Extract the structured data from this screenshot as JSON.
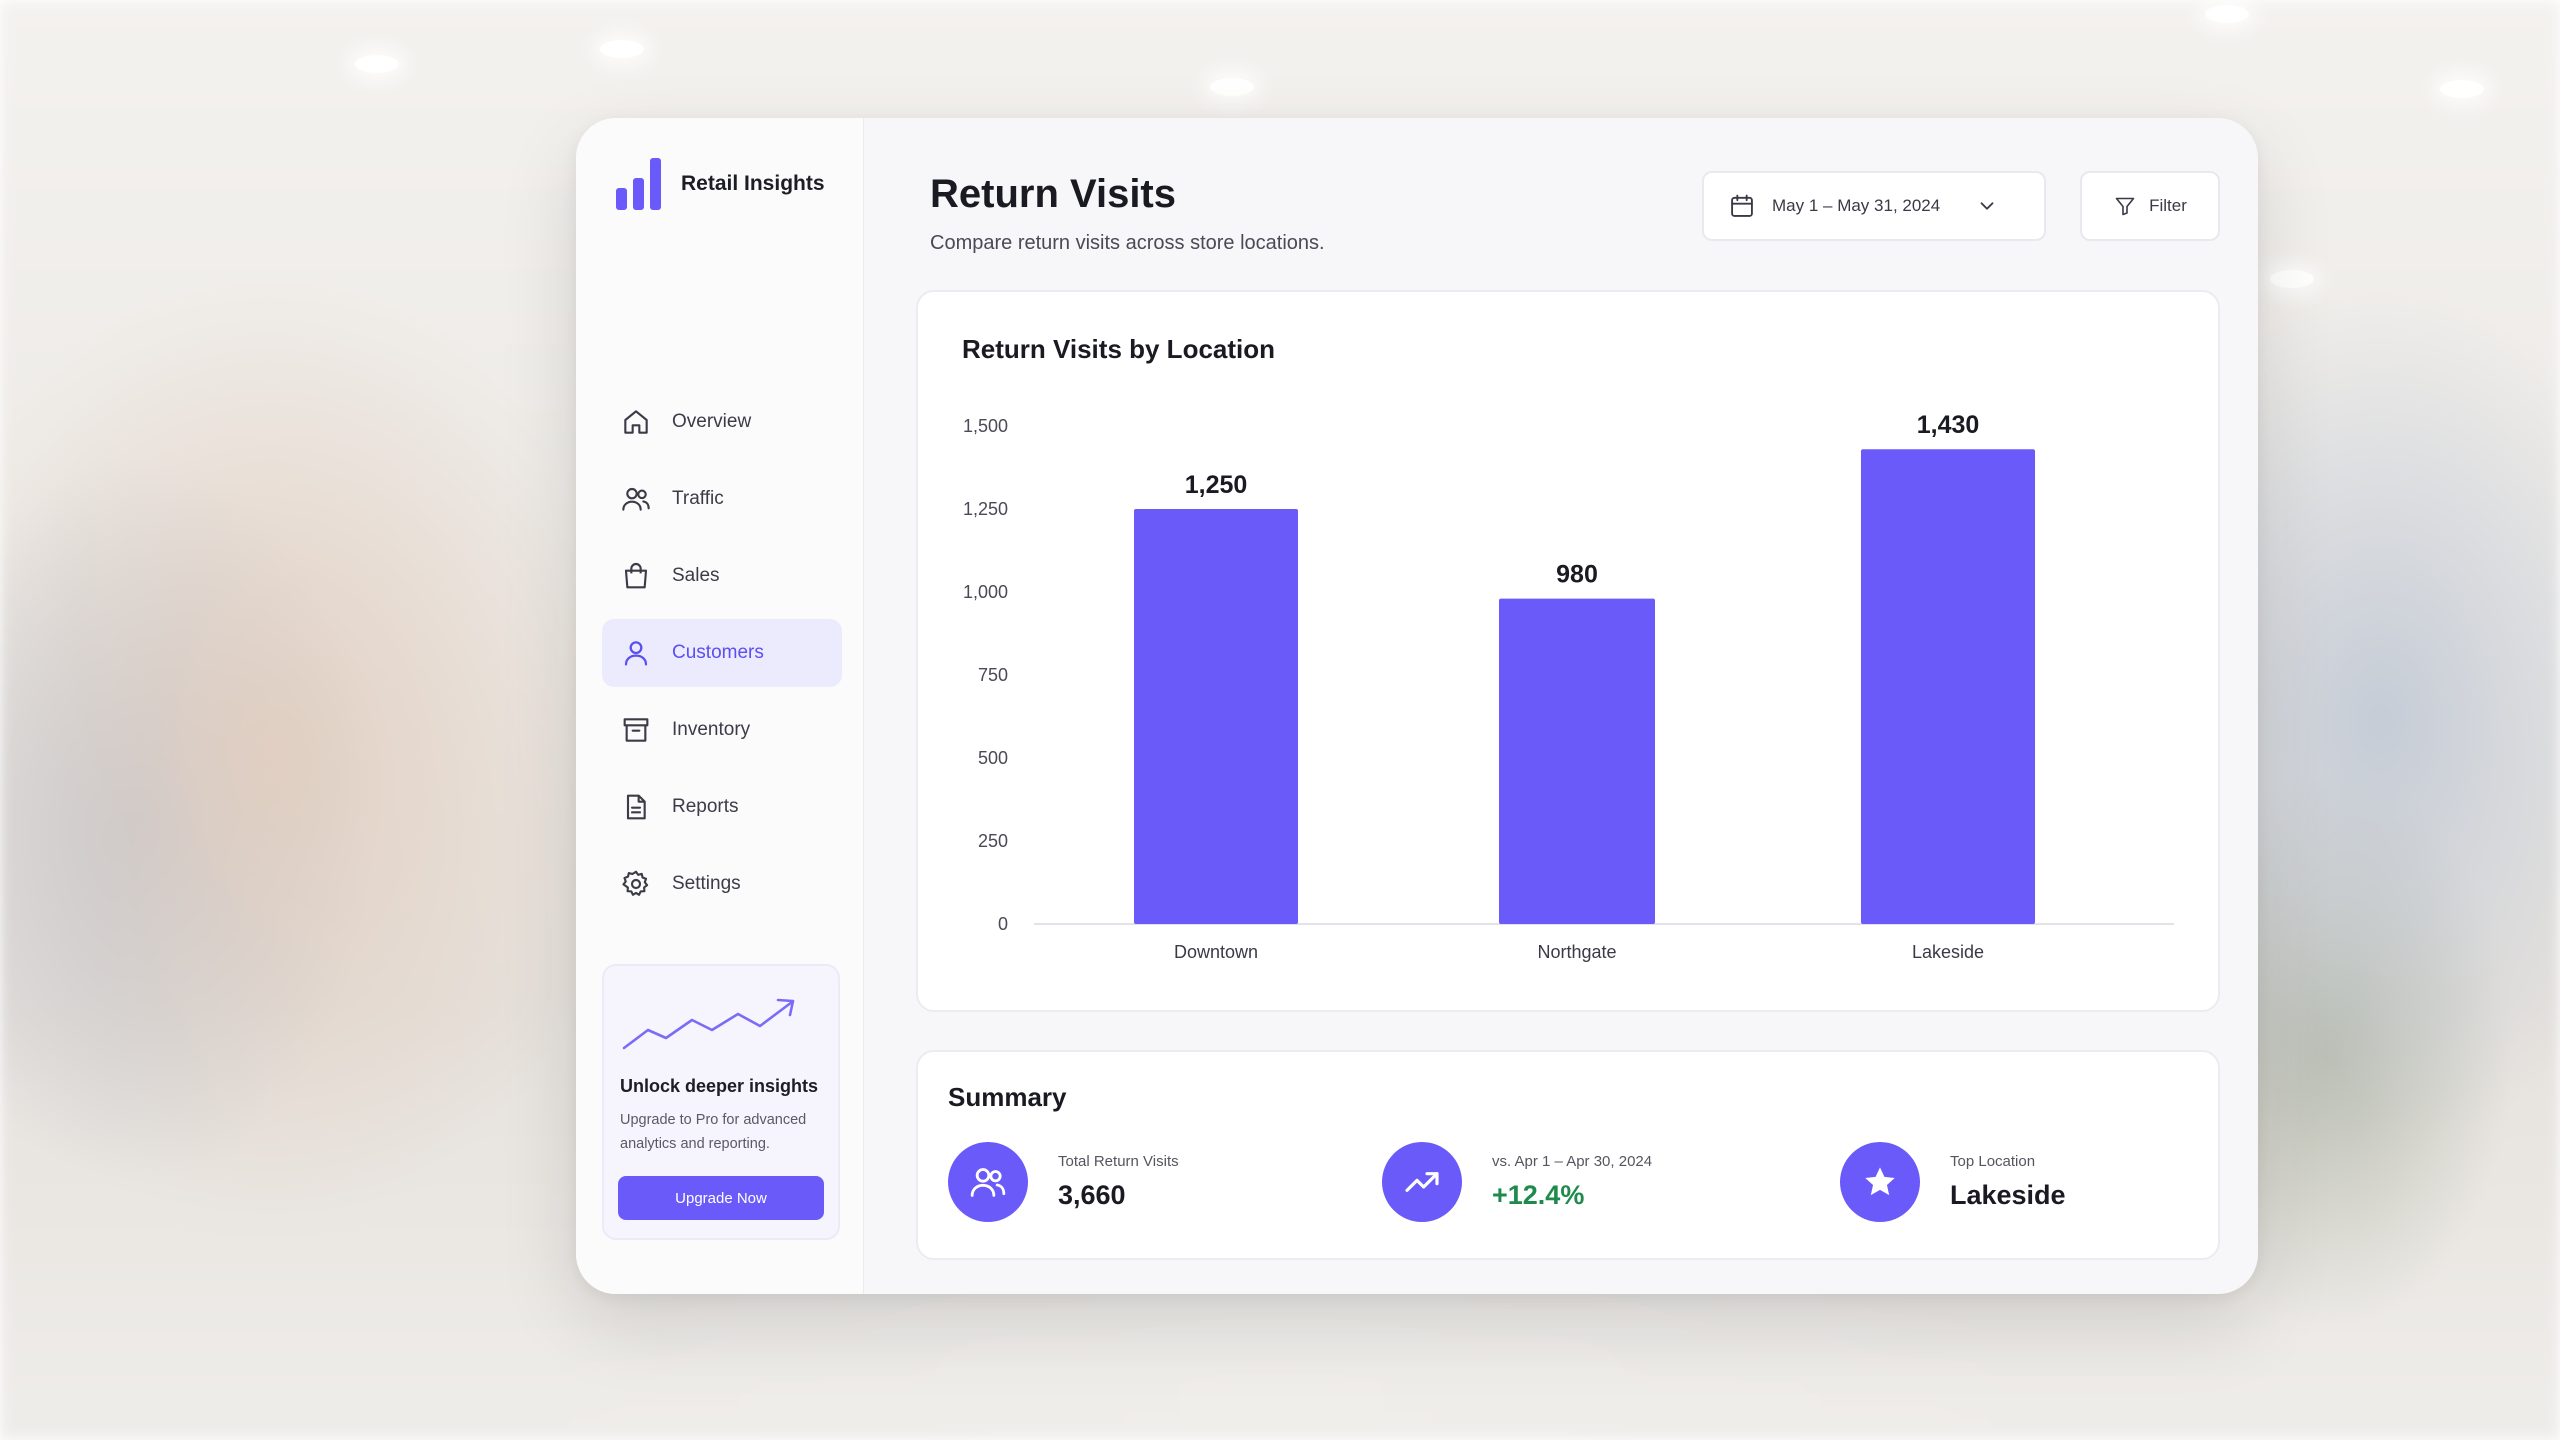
{
  "app": {
    "name": "Retail Insights"
  },
  "sidebar": {
    "items": [
      {
        "label": "Overview",
        "icon": "home-icon"
      },
      {
        "label": "Traffic",
        "icon": "users-icon"
      },
      {
        "label": "Sales",
        "icon": "shopping-bag-icon"
      },
      {
        "label": "Customers",
        "icon": "user-icon",
        "active": true
      },
      {
        "label": "Inventory",
        "icon": "archive-box-icon"
      },
      {
        "label": "Reports",
        "icon": "document-icon"
      },
      {
        "label": "Settings",
        "icon": "gear-icon"
      }
    ],
    "promo": {
      "title": "Unlock deeper insights",
      "text": "Upgrade to Pro for advanced analytics and reporting.",
      "button_label": "Upgrade Now"
    }
  },
  "header": {
    "title": "Return Visits",
    "subtitle": "Compare return visits across store locations.",
    "date_range": "May 1 – May 31, 2024",
    "filter_label": "Filter"
  },
  "chart_data": {
    "type": "bar",
    "title": "Return Visits by Location",
    "categories": [
      "Downtown",
      "Northgate",
      "Lakeside"
    ],
    "values": [
      1250,
      980,
      1430
    ],
    "value_labels": [
      "1,250",
      "980",
      "1,430"
    ],
    "ylim": [
      0,
      1500
    ],
    "yticks": [
      0,
      250,
      500,
      750,
      1000,
      1250,
      1500
    ],
    "ytick_labels": [
      "0",
      "250",
      "500",
      "750",
      "1,000",
      "1,250",
      "1,500"
    ],
    "xlabel": "",
    "ylabel": "",
    "grid": false,
    "bar_color": "#6a5af9"
  },
  "summary": {
    "title": "Summary",
    "metrics": [
      {
        "label": "Total Return Visits",
        "value": "3,660",
        "icon": "users-icon"
      },
      {
        "label": "vs. Apr 1 – Apr 30, 2024",
        "value": "+12.4%",
        "icon": "trending-up-icon"
      },
      {
        "label": "Top Location",
        "value": "Lakeside",
        "icon": "star-icon"
      }
    ]
  },
  "colors": {
    "accent": "#6a5af9",
    "positive": "#1f8a4c"
  }
}
